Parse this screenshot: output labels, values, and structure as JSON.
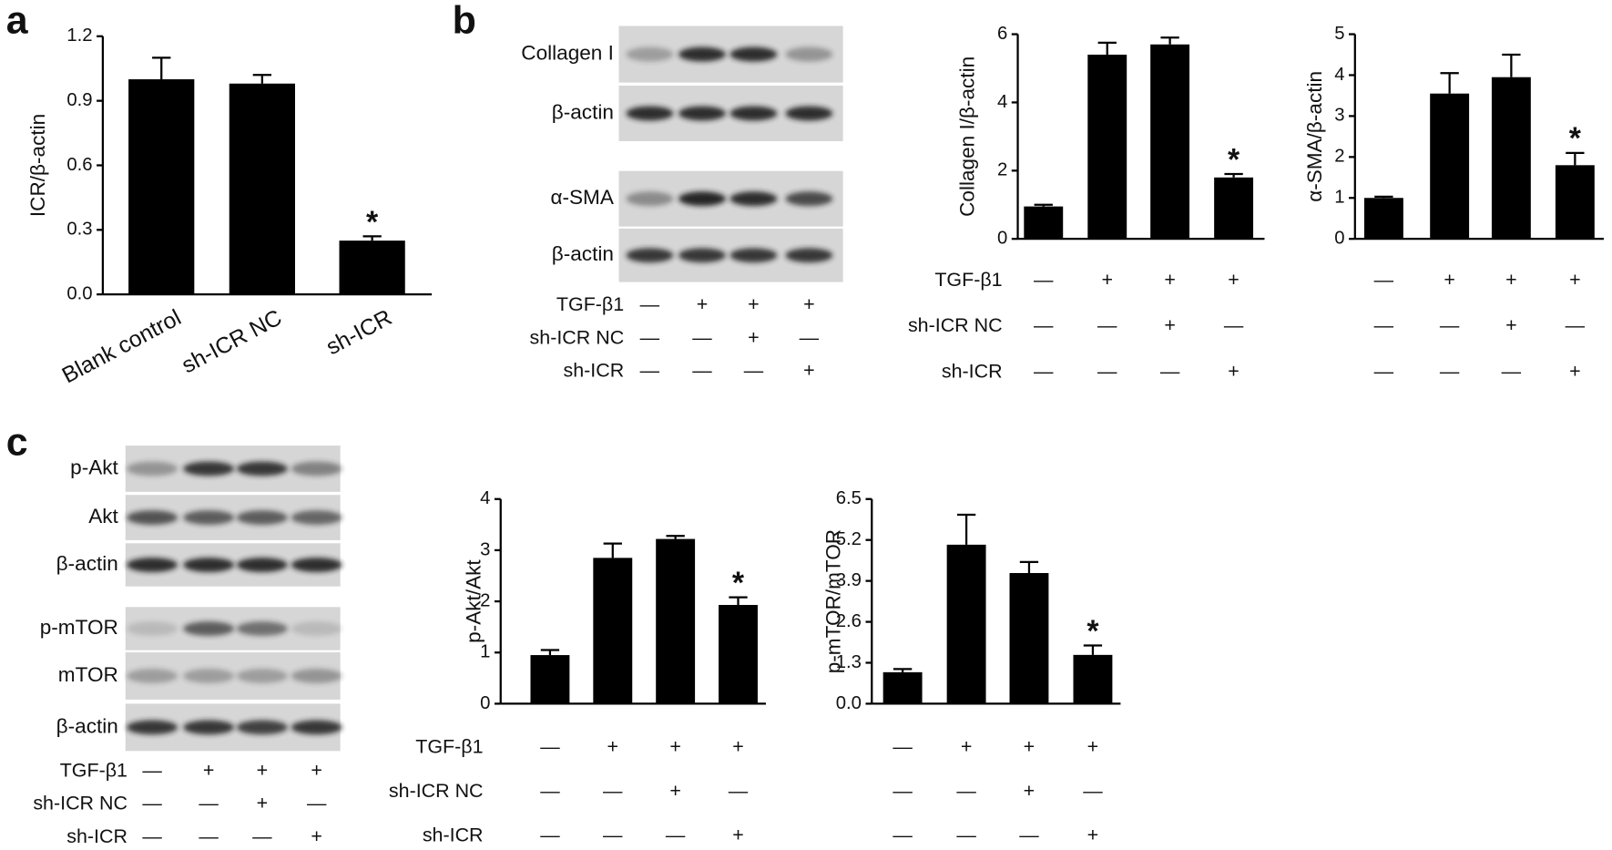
{
  "panel_labels": [
    "a",
    "b",
    "c"
  ],
  "blots": [
    {
      "lanes": [
        "Collagen I",
        "β-actin",
        "α-SMA",
        "β-actin"
      ],
      "conditions": [
        {
          "name": "TGF-β1",
          "signs": [
            "—",
            "+",
            "+",
            "+"
          ]
        },
        {
          "name": "sh-ICR NC",
          "signs": [
            "—",
            "—",
            "+",
            "—"
          ]
        },
        {
          "name": "sh-ICR",
          "signs": [
            "—",
            "—",
            "—",
            "+"
          ]
        }
      ]
    },
    {
      "lanes": [
        "p-Akt",
        "Akt",
        "β-actin",
        "p-mTOR",
        "mTOR",
        "β-actin"
      ],
      "conditions": [
        {
          "name": "TGF-β1",
          "signs": [
            "—",
            "+",
            "+",
            "+"
          ]
        },
        {
          "name": "sh-ICR NC",
          "signs": [
            "—",
            "—",
            "+",
            "—"
          ]
        },
        {
          "name": "sh-ICR",
          "signs": [
            "—",
            "—",
            "—",
            "+"
          ]
        }
      ]
    }
  ],
  "chart_data": [
    {
      "type": "bar",
      "ylabel": "ICR/β-actin",
      "categories": [
        "Blank control",
        "sh-ICR NC",
        "sh-ICR"
      ],
      "values": [
        1.0,
        0.98,
        0.25
      ],
      "errors": [
        0.1,
        0.04,
        0.02
      ],
      "markers": [
        null,
        null,
        "*"
      ],
      "color": "#000000",
      "ylim": [
        0,
        1.2
      ],
      "yticks": [
        {
          "value": 0,
          "label": "0.0"
        },
        0.3,
        0.6,
        0.9,
        1.2
      ]
    },
    {
      "type": "bar",
      "ylabel": "Collagen I/β-actin",
      "categories": [
        null,
        null,
        null,
        null
      ],
      "values": [
        0.95,
        5.4,
        5.7,
        1.8
      ],
      "errors": [
        0.05,
        0.35,
        0.2,
        0.1
      ],
      "markers": [
        null,
        null,
        null,
        "*"
      ],
      "color": "#000000",
      "ylim": [
        0,
        6
      ],
      "yticks": [
        0,
        2,
        4,
        6
      ],
      "conditions": [
        {
          "name": "TGF-β1",
          "signs": [
            "—",
            "+",
            "+",
            "+"
          ]
        },
        {
          "name": "sh-ICR NC",
          "signs": [
            "—",
            "—",
            "+",
            "—"
          ]
        },
        {
          "name": "sh-ICR",
          "signs": [
            "—",
            "—",
            "—",
            "+"
          ]
        }
      ]
    },
    {
      "type": "bar",
      "ylabel": "α-SMA/β-actin",
      "categories": [
        null,
        null,
        null,
        null
      ],
      "values": [
        1.0,
        3.55,
        3.95,
        1.8
      ],
      "errors": [
        0.03,
        0.5,
        0.55,
        0.3
      ],
      "markers": [
        null,
        null,
        null,
        "*"
      ],
      "color": "#000000",
      "ylim": [
        0,
        5
      ],
      "yticks": [
        0,
        1,
        2,
        3,
        4,
        5
      ],
      "conditions": [
        {
          "signs": [
            "—",
            "+",
            "+",
            "+"
          ]
        },
        {
          "signs": [
            "—",
            "—",
            "+",
            "—"
          ]
        },
        {
          "signs": [
            "—",
            "—",
            "—",
            "+"
          ]
        }
      ]
    },
    {
      "type": "bar",
      "ylabel": "p-Akt/Akt",
      "categories": [
        null,
        null,
        null,
        null
      ],
      "values": [
        0.95,
        2.85,
        3.22,
        1.93
      ],
      "errors": [
        0.1,
        0.28,
        0.06,
        0.15
      ],
      "markers": [
        null,
        null,
        null,
        "*"
      ],
      "color": "#000000",
      "ylim": [
        0,
        4
      ],
      "yticks": [
        0,
        1,
        2,
        3,
        4
      ],
      "conditions": [
        {
          "name": "TGF-β1",
          "signs": [
            "—",
            "+",
            "+",
            "+"
          ]
        },
        {
          "name": "sh-ICR NC",
          "signs": [
            "—",
            "—",
            "+",
            "—"
          ]
        },
        {
          "name": "sh-ICR",
          "signs": [
            "—",
            "—",
            "—",
            "+"
          ]
        }
      ]
    },
    {
      "type": "bar",
      "ylabel": "p-mTOR/mTOR",
      "categories": [
        null,
        null,
        null,
        null
      ],
      "values": [
        1.0,
        5.05,
        4.15,
        1.55
      ],
      "errors": [
        0.1,
        0.95,
        0.35,
        0.3
      ],
      "markers": [
        null,
        null,
        null,
        "*"
      ],
      "color": "#000000",
      "ylim": [
        0,
        6.5
      ],
      "yticks": [
        {
          "value": 0,
          "label": "0.0"
        },
        1.3,
        2.6,
        3.9,
        5.2,
        6.5
      ],
      "conditions": [
        {
          "signs": [
            "—",
            "+",
            "+",
            "+"
          ]
        },
        {
          "signs": [
            "—",
            "—",
            "+",
            "—"
          ]
        },
        {
          "signs": [
            "—",
            "—",
            "—",
            "+"
          ]
        }
      ]
    }
  ]
}
